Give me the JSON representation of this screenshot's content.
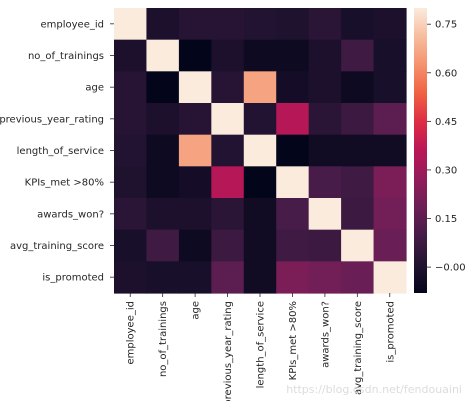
{
  "chart_data": {
    "type": "heatmap",
    "title": "",
    "xlabel": "",
    "ylabel": "",
    "rows": [
      "employee_id",
      "no_of_trainings",
      "age",
      "previous_year_rating",
      "length_of_service",
      "KPIs_met >80%",
      "awards_won?",
      "avg_training_score",
      "is_promoted"
    ],
    "columns": [
      "employee_id",
      "no_of_trainings",
      "age",
      "previous_year_rating",
      "length_of_service",
      "KPIs_met >80%",
      "awards_won?",
      "avg_training_score",
      "is_promoted"
    ],
    "values": [
      [
        1.0,
        -0.01,
        0.02,
        0.02,
        0.01,
        0.0,
        0.03,
        -0.02,
        -0.01
      ],
      [
        -0.01,
        1.0,
        -0.08,
        -0.01,
        -0.05,
        -0.05,
        -0.01,
        0.08,
        -0.02
      ],
      [
        0.02,
        -0.08,
        1.0,
        0.02,
        0.66,
        -0.03,
        -0.01,
        -0.05,
        -0.02
      ],
      [
        0.02,
        -0.01,
        0.02,
        1.0,
        0.01,
        0.35,
        0.03,
        0.07,
        0.15
      ],
      [
        0.01,
        -0.05,
        0.66,
        0.01,
        1.0,
        -0.08,
        -0.04,
        -0.04,
        -0.04
      ],
      [
        0.0,
        -0.05,
        -0.03,
        0.35,
        -0.08,
        1.0,
        0.1,
        0.08,
        0.22
      ],
      [
        0.03,
        -0.01,
        -0.01,
        0.03,
        -0.04,
        0.1,
        1.0,
        0.07,
        0.2
      ],
      [
        -0.02,
        0.08,
        -0.05,
        0.07,
        -0.04,
        0.08,
        0.07,
        1.0,
        0.18
      ],
      [
        -0.01,
        -0.02,
        -0.02,
        0.15,
        -0.04,
        0.22,
        0.2,
        0.18,
        1.0
      ]
    ],
    "colorbar": {
      "ticks": [
        -0.0,
        0.15,
        0.3,
        0.45,
        0.6,
        0.75
      ],
      "tick_labels": [
        "−0.00",
        "0.15",
        "0.30",
        "0.45",
        "0.60",
        "0.75"
      ],
      "vmin": -0.08,
      "vmax": 0.8
    },
    "colormap": "rocket",
    "grid": false
  },
  "watermark": {
    "text": "https://blog.csdn.net/fendouaini"
  }
}
